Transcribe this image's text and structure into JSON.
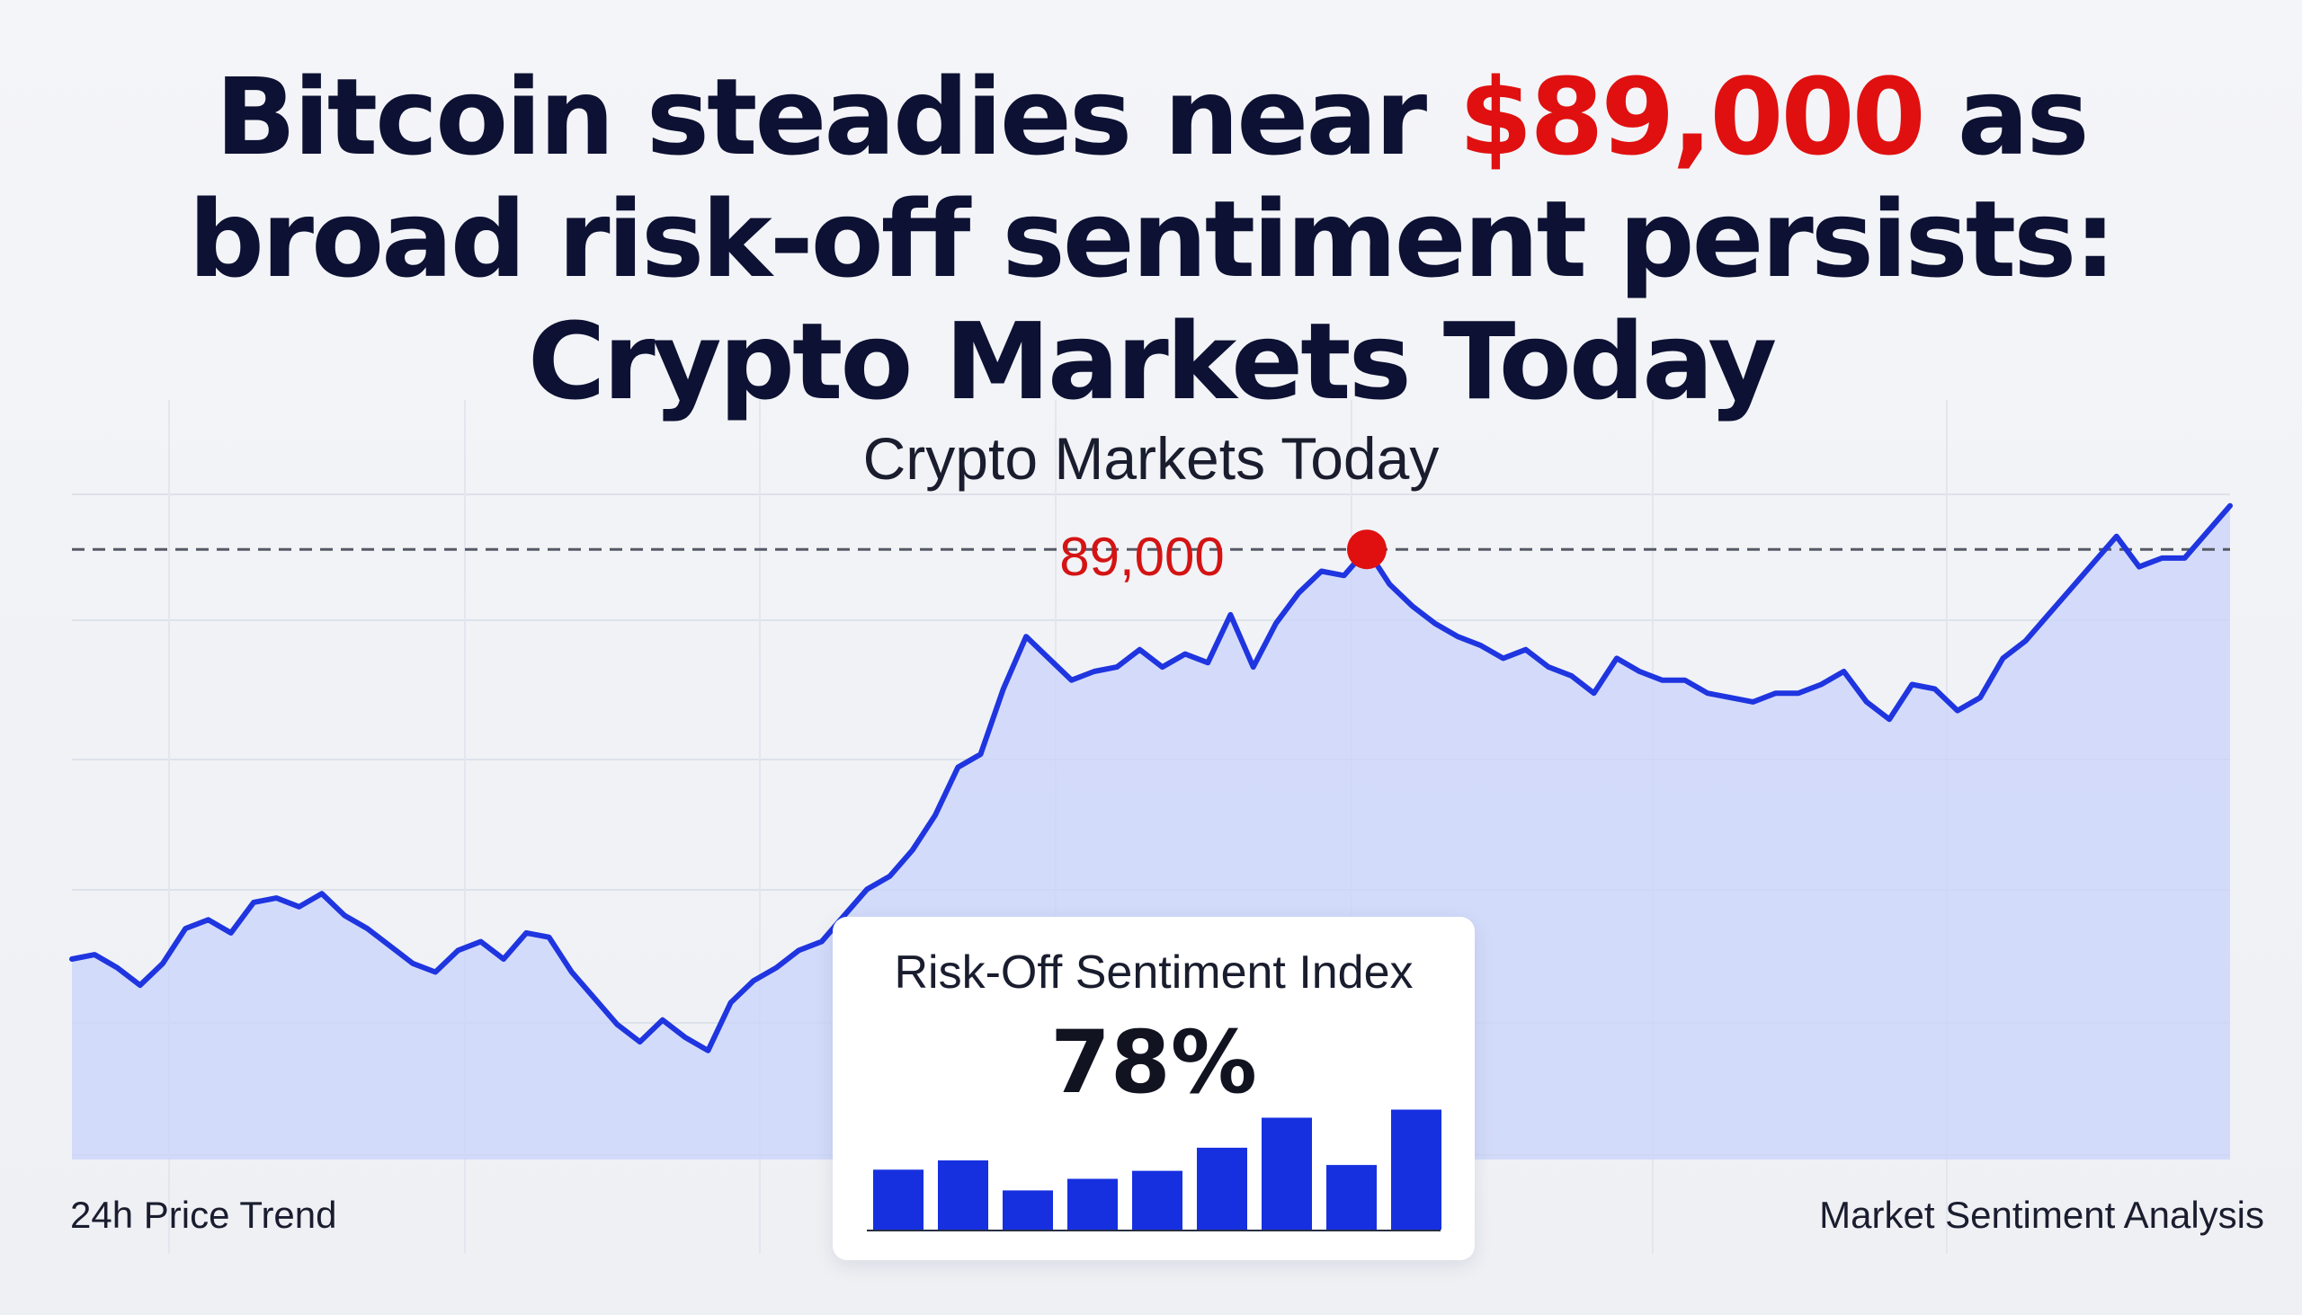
{
  "headline": {
    "line1_part1": "Bitcoin steadies near ",
    "line1_accent": "$89,000",
    "line1_part2": " as",
    "line2": "broad risk-off sentiment persists:",
    "line3": "Crypto Markets Today"
  },
  "colors": {
    "line": "#1f35e0",
    "area": "#c9d3fb",
    "accent": "#e01010",
    "bars": "#1630e0",
    "text": "#0d1133"
  },
  "chart_data": [
    {
      "type": "line",
      "title": "Crypto Markets Today",
      "subtitle": "",
      "series": [
        {
          "values": [
            79600,
            79700,
            79400,
            79000,
            79500,
            80300,
            80500,
            80200,
            80900,
            81000,
            80800,
            81100,
            80600,
            80300,
            79900,
            79500,
            79300,
            79800,
            80000,
            79600,
            80200,
            80100,
            79300,
            78700,
            78100,
            77700,
            78200,
            77800,
            77500,
            78600,
            79100,
            79400,
            79800,
            80000,
            80600,
            81200,
            81500,
            82100,
            82900,
            84000,
            84300,
            85800,
            87000,
            86500,
            86000,
            86200,
            86300,
            86700,
            86300,
            86600,
            86400,
            87500,
            86300,
            87300,
            88000,
            88500,
            88400,
            89000,
            88200,
            87700,
            87300,
            87000,
            86800,
            86500,
            86700,
            86300,
            86100,
            85700,
            86500,
            86200,
            86000,
            86000,
            85700,
            85600,
            85500,
            85700,
            85700,
            85900,
            86200,
            85500,
            85100,
            85900,
            85800,
            85300,
            85600,
            86500,
            86900,
            87500,
            88100,
            88700,
            89300,
            88600,
            88800,
            88800,
            89400,
            90000
          ],
          "peak_index": 57,
          "peak_label": "89,000"
        }
      ],
      "reference_line": 89000,
      "reference_style": "dashed",
      "grid": true,
      "fill_area": true,
      "xlabel": "24h Price Trend",
      "ylabel": "",
      "corner_right_label": "Market Sentiment Analysis"
    },
    {
      "type": "bar",
      "title": "Risk-Off Sentiment Index",
      "headline_value": "78%",
      "values": [
        52,
        60,
        34,
        44,
        51,
        71,
        97,
        56,
        104
      ],
      "ylim": [
        0,
        120
      ]
    }
  ]
}
